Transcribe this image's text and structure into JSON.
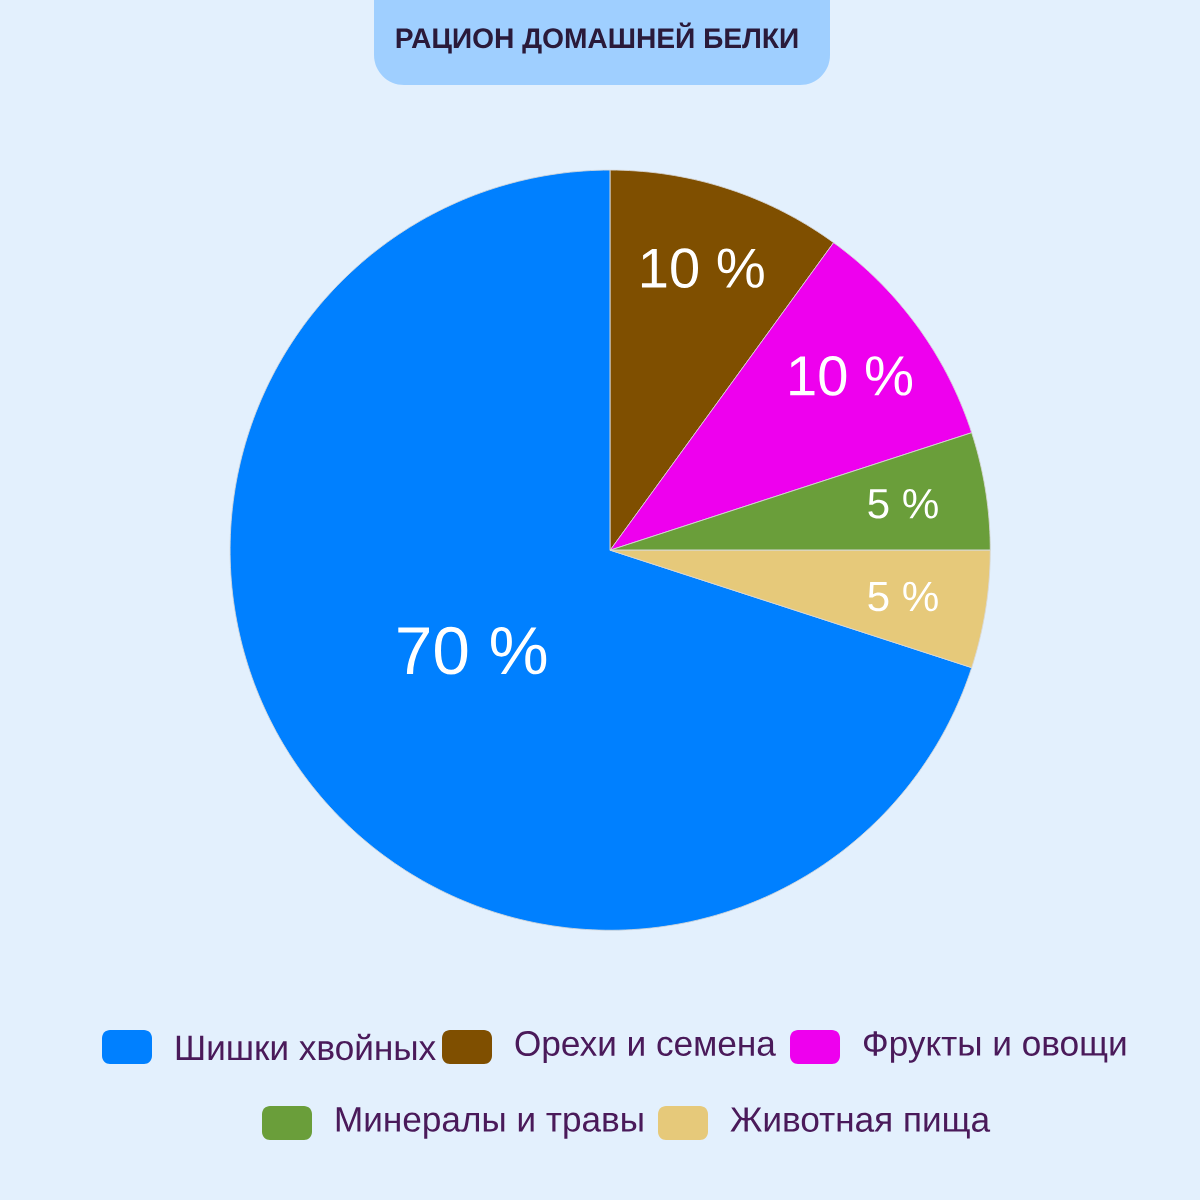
{
  "chart_data": {
    "type": "pie",
    "title": "РАЦИОН ДОМАШНЕЙ БЕЛКИ",
    "categories": [
      "Шишки хвойных",
      "Орехи и семена",
      "Фрукты и овощи",
      "Минералы и травы",
      "Животная пища"
    ],
    "values": [
      70,
      10,
      10,
      5,
      5
    ],
    "colors": [
      "#0080ff",
      "#7f4f00",
      "#ee00ee",
      "#6a9e3a",
      "#e6c97a"
    ],
    "value_labels": [
      "70 %",
      "10 %",
      "10 %",
      "5 %",
      "5 %"
    ],
    "legend": "bottom"
  }
}
